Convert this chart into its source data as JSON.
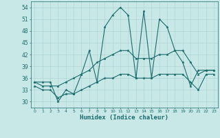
{
  "xlabel": "Humidex (Indice chaleur)",
  "background_color": "#c8e8e8",
  "grid_color": "#b0d4d4",
  "line_color": "#1a6b6b",
  "xlim": [
    -0.5,
    23.5
  ],
  "ylim": [
    28.5,
    55.5
  ],
  "yticks": [
    30,
    33,
    36,
    39,
    42,
    45,
    48,
    51,
    54
  ],
  "xticks": [
    0,
    1,
    2,
    3,
    4,
    5,
    6,
    7,
    8,
    9,
    10,
    11,
    12,
    13,
    14,
    15,
    16,
    17,
    18,
    19,
    20,
    21,
    22,
    23
  ],
  "series": [
    [
      35,
      35,
      35,
      30,
      33,
      32,
      37,
      43,
      35,
      49,
      52,
      54,
      52,
      36,
      53,
      36,
      51,
      49,
      43,
      40,
      34,
      38,
      38,
      38
    ],
    [
      35,
      34,
      34,
      34,
      35,
      36,
      37,
      38,
      40,
      41,
      42,
      43,
      43,
      41,
      41,
      41,
      42,
      42,
      43,
      43,
      40,
      37,
      38,
      38
    ],
    [
      34,
      33,
      33,
      31,
      32,
      32,
      33,
      34,
      35,
      36,
      36,
      37,
      37,
      36,
      36,
      36,
      37,
      37,
      37,
      37,
      35,
      33,
      37,
      37
    ]
  ]
}
